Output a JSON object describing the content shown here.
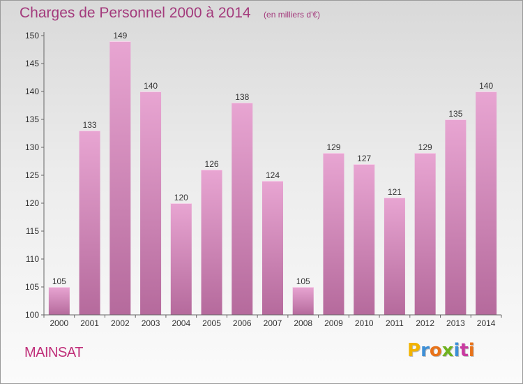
{
  "header": {
    "title": "Charges de Personnel 2000 à 2014",
    "subtitle": "(en milliers d'€)"
  },
  "footer": {
    "place": "MAINSAT",
    "brand": "Proxiti"
  },
  "colors": {
    "bar_top": "#e8a5d2",
    "bar_bottom": "#b56a9c",
    "title": "#a33a7c",
    "place": "#c0307a"
  },
  "chart_data": {
    "type": "bar",
    "categories": [
      "2000",
      "2001",
      "2002",
      "2003",
      "2004",
      "2005",
      "2006",
      "2007",
      "2008",
      "2009",
      "2010",
      "2011",
      "2012",
      "2013",
      "2014"
    ],
    "values": [
      105,
      133,
      149,
      140,
      120,
      126,
      138,
      124,
      105,
      129,
      127,
      121,
      129,
      135,
      140
    ],
    "title": "Charges de Personnel 2000 à 2014",
    "subtitle": "(en milliers d'€)",
    "ylim": [
      100,
      150
    ],
    "yticks": [
      100,
      105,
      110,
      115,
      120,
      125,
      130,
      135,
      140,
      145,
      150
    ],
    "grid": false,
    "data_labels": true
  }
}
